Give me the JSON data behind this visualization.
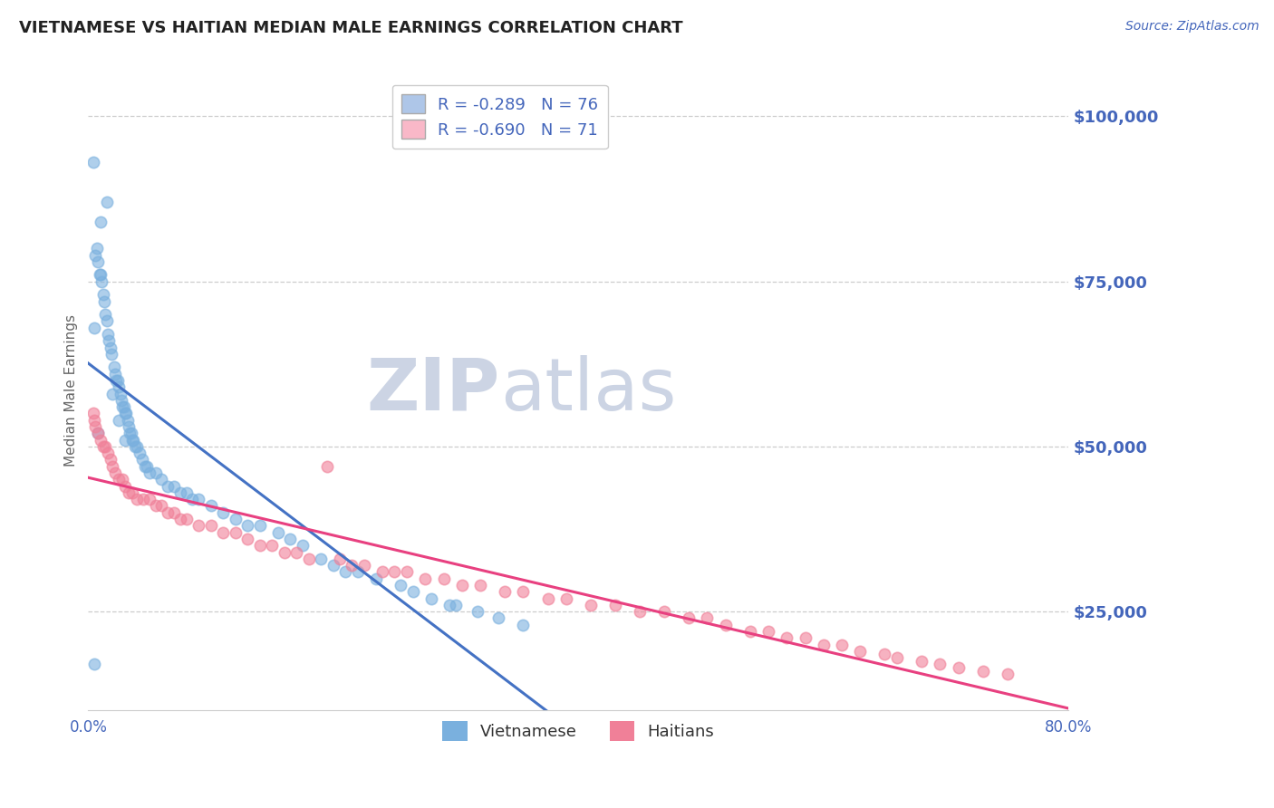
{
  "title": "VIETNAMESE VS HAITIAN MEDIAN MALE EARNINGS CORRELATION CHART",
  "source_text": "Source: ZipAtlas.com",
  "ylabel": "Median Male Earnings",
  "xlim": [
    0.0,
    0.8
  ],
  "ylim": [
    10000,
    107000
  ],
  "yticks": [
    25000,
    50000,
    75000,
    100000
  ],
  "ytick_labels": [
    "$25,000",
    "$50,000",
    "$75,000",
    "$100,000"
  ],
  "xticks": [
    0.0,
    0.1,
    0.2,
    0.3,
    0.4,
    0.5,
    0.6,
    0.7,
    0.8
  ],
  "xtick_labels": [
    "0.0%",
    "",
    "",
    "",
    "",
    "",
    "",
    "",
    "80.0%"
  ],
  "legend_label_viet": "R = -0.289   N = 76",
  "legend_label_hait": "R = -0.690   N = 71",
  "legend_color_viet": "#aec6e8",
  "legend_color_hait": "#f9b8c8",
  "vietnamese_color": "#7ab0de",
  "haitian_color": "#f08098",
  "viet_line_color": "#4472c4",
  "hait_line_color": "#e84080",
  "dashed_line_color": "#b8c4d0",
  "watermark_text": "ZIP",
  "watermark_text2": "atlas",
  "watermark_color": "#ccd4e4",
  "title_color": "#222222",
  "axis_label_color": "#666666",
  "tick_color": "#4466bb",
  "grid_color": "#c8c8c8",
  "background_color": "#ffffff",
  "viet_scatter_x": [
    0.004,
    0.015,
    0.01,
    0.007,
    0.006,
    0.008,
    0.009,
    0.01,
    0.011,
    0.012,
    0.013,
    0.014,
    0.005,
    0.015,
    0.016,
    0.017,
    0.018,
    0.019,
    0.021,
    0.022,
    0.023,
    0.024,
    0.025,
    0.026,
    0.027,
    0.028,
    0.029,
    0.03,
    0.031,
    0.032,
    0.033,
    0.034,
    0.035,
    0.036,
    0.037,
    0.038,
    0.04,
    0.042,
    0.044,
    0.046,
    0.048,
    0.05,
    0.055,
    0.06,
    0.065,
    0.07,
    0.075,
    0.08,
    0.085,
    0.09,
    0.1,
    0.11,
    0.12,
    0.13,
    0.14,
    0.155,
    0.008,
    0.02,
    0.025,
    0.03,
    0.165,
    0.175,
    0.19,
    0.2,
    0.21,
    0.22,
    0.235,
    0.255,
    0.265,
    0.28,
    0.295,
    0.3,
    0.318,
    0.335,
    0.355,
    0.005
  ],
  "viet_scatter_y": [
    93000,
    87000,
    84000,
    80000,
    79000,
    78000,
    76000,
    76000,
    75000,
    73000,
    72000,
    70000,
    68000,
    69000,
    67000,
    66000,
    65000,
    64000,
    62000,
    61000,
    60000,
    60000,
    59000,
    58000,
    57000,
    56000,
    56000,
    55000,
    55000,
    54000,
    53000,
    52000,
    52000,
    51000,
    51000,
    50000,
    50000,
    49000,
    48000,
    47000,
    47000,
    46000,
    46000,
    45000,
    44000,
    44000,
    43000,
    43000,
    42000,
    42000,
    41000,
    40000,
    39000,
    38000,
    38000,
    37000,
    52000,
    58000,
    54000,
    51000,
    36000,
    35000,
    33000,
    32000,
    31000,
    31000,
    30000,
    29000,
    28000,
    27000,
    26000,
    26000,
    25000,
    24000,
    23000,
    17000
  ],
  "hait_scatter_x": [
    0.004,
    0.005,
    0.006,
    0.008,
    0.01,
    0.012,
    0.014,
    0.016,
    0.018,
    0.02,
    0.022,
    0.025,
    0.028,
    0.03,
    0.033,
    0.036,
    0.04,
    0.045,
    0.05,
    0.055,
    0.06,
    0.065,
    0.07,
    0.075,
    0.08,
    0.09,
    0.1,
    0.11,
    0.12,
    0.13,
    0.14,
    0.15,
    0.16,
    0.17,
    0.18,
    0.195,
    0.205,
    0.215,
    0.225,
    0.24,
    0.25,
    0.26,
    0.275,
    0.29,
    0.305,
    0.32,
    0.34,
    0.355,
    0.375,
    0.39,
    0.41,
    0.43,
    0.45,
    0.47,
    0.49,
    0.505,
    0.52,
    0.54,
    0.555,
    0.57,
    0.585,
    0.6,
    0.615,
    0.63,
    0.65,
    0.66,
    0.68,
    0.695,
    0.71,
    0.73,
    0.75
  ],
  "hait_scatter_y": [
    55000,
    54000,
    53000,
    52000,
    51000,
    50000,
    50000,
    49000,
    48000,
    47000,
    46000,
    45000,
    45000,
    44000,
    43000,
    43000,
    42000,
    42000,
    42000,
    41000,
    41000,
    40000,
    40000,
    39000,
    39000,
    38000,
    38000,
    37000,
    37000,
    36000,
    35000,
    35000,
    34000,
    34000,
    33000,
    47000,
    33000,
    32000,
    32000,
    31000,
    31000,
    31000,
    30000,
    30000,
    29000,
    29000,
    28000,
    28000,
    27000,
    27000,
    26000,
    26000,
    25000,
    25000,
    24000,
    24000,
    23000,
    22000,
    22000,
    21000,
    21000,
    20000,
    20000,
    19000,
    18500,
    18000,
    17500,
    17000,
    16500,
    16000,
    15500
  ],
  "viet_line_x0": 0.0,
  "viet_line_x1": 0.4,
  "hait_line_x0": 0.0,
  "hait_line_x1": 0.8,
  "dash_line_x0": 0.28,
  "dash_line_x1": 0.8
}
